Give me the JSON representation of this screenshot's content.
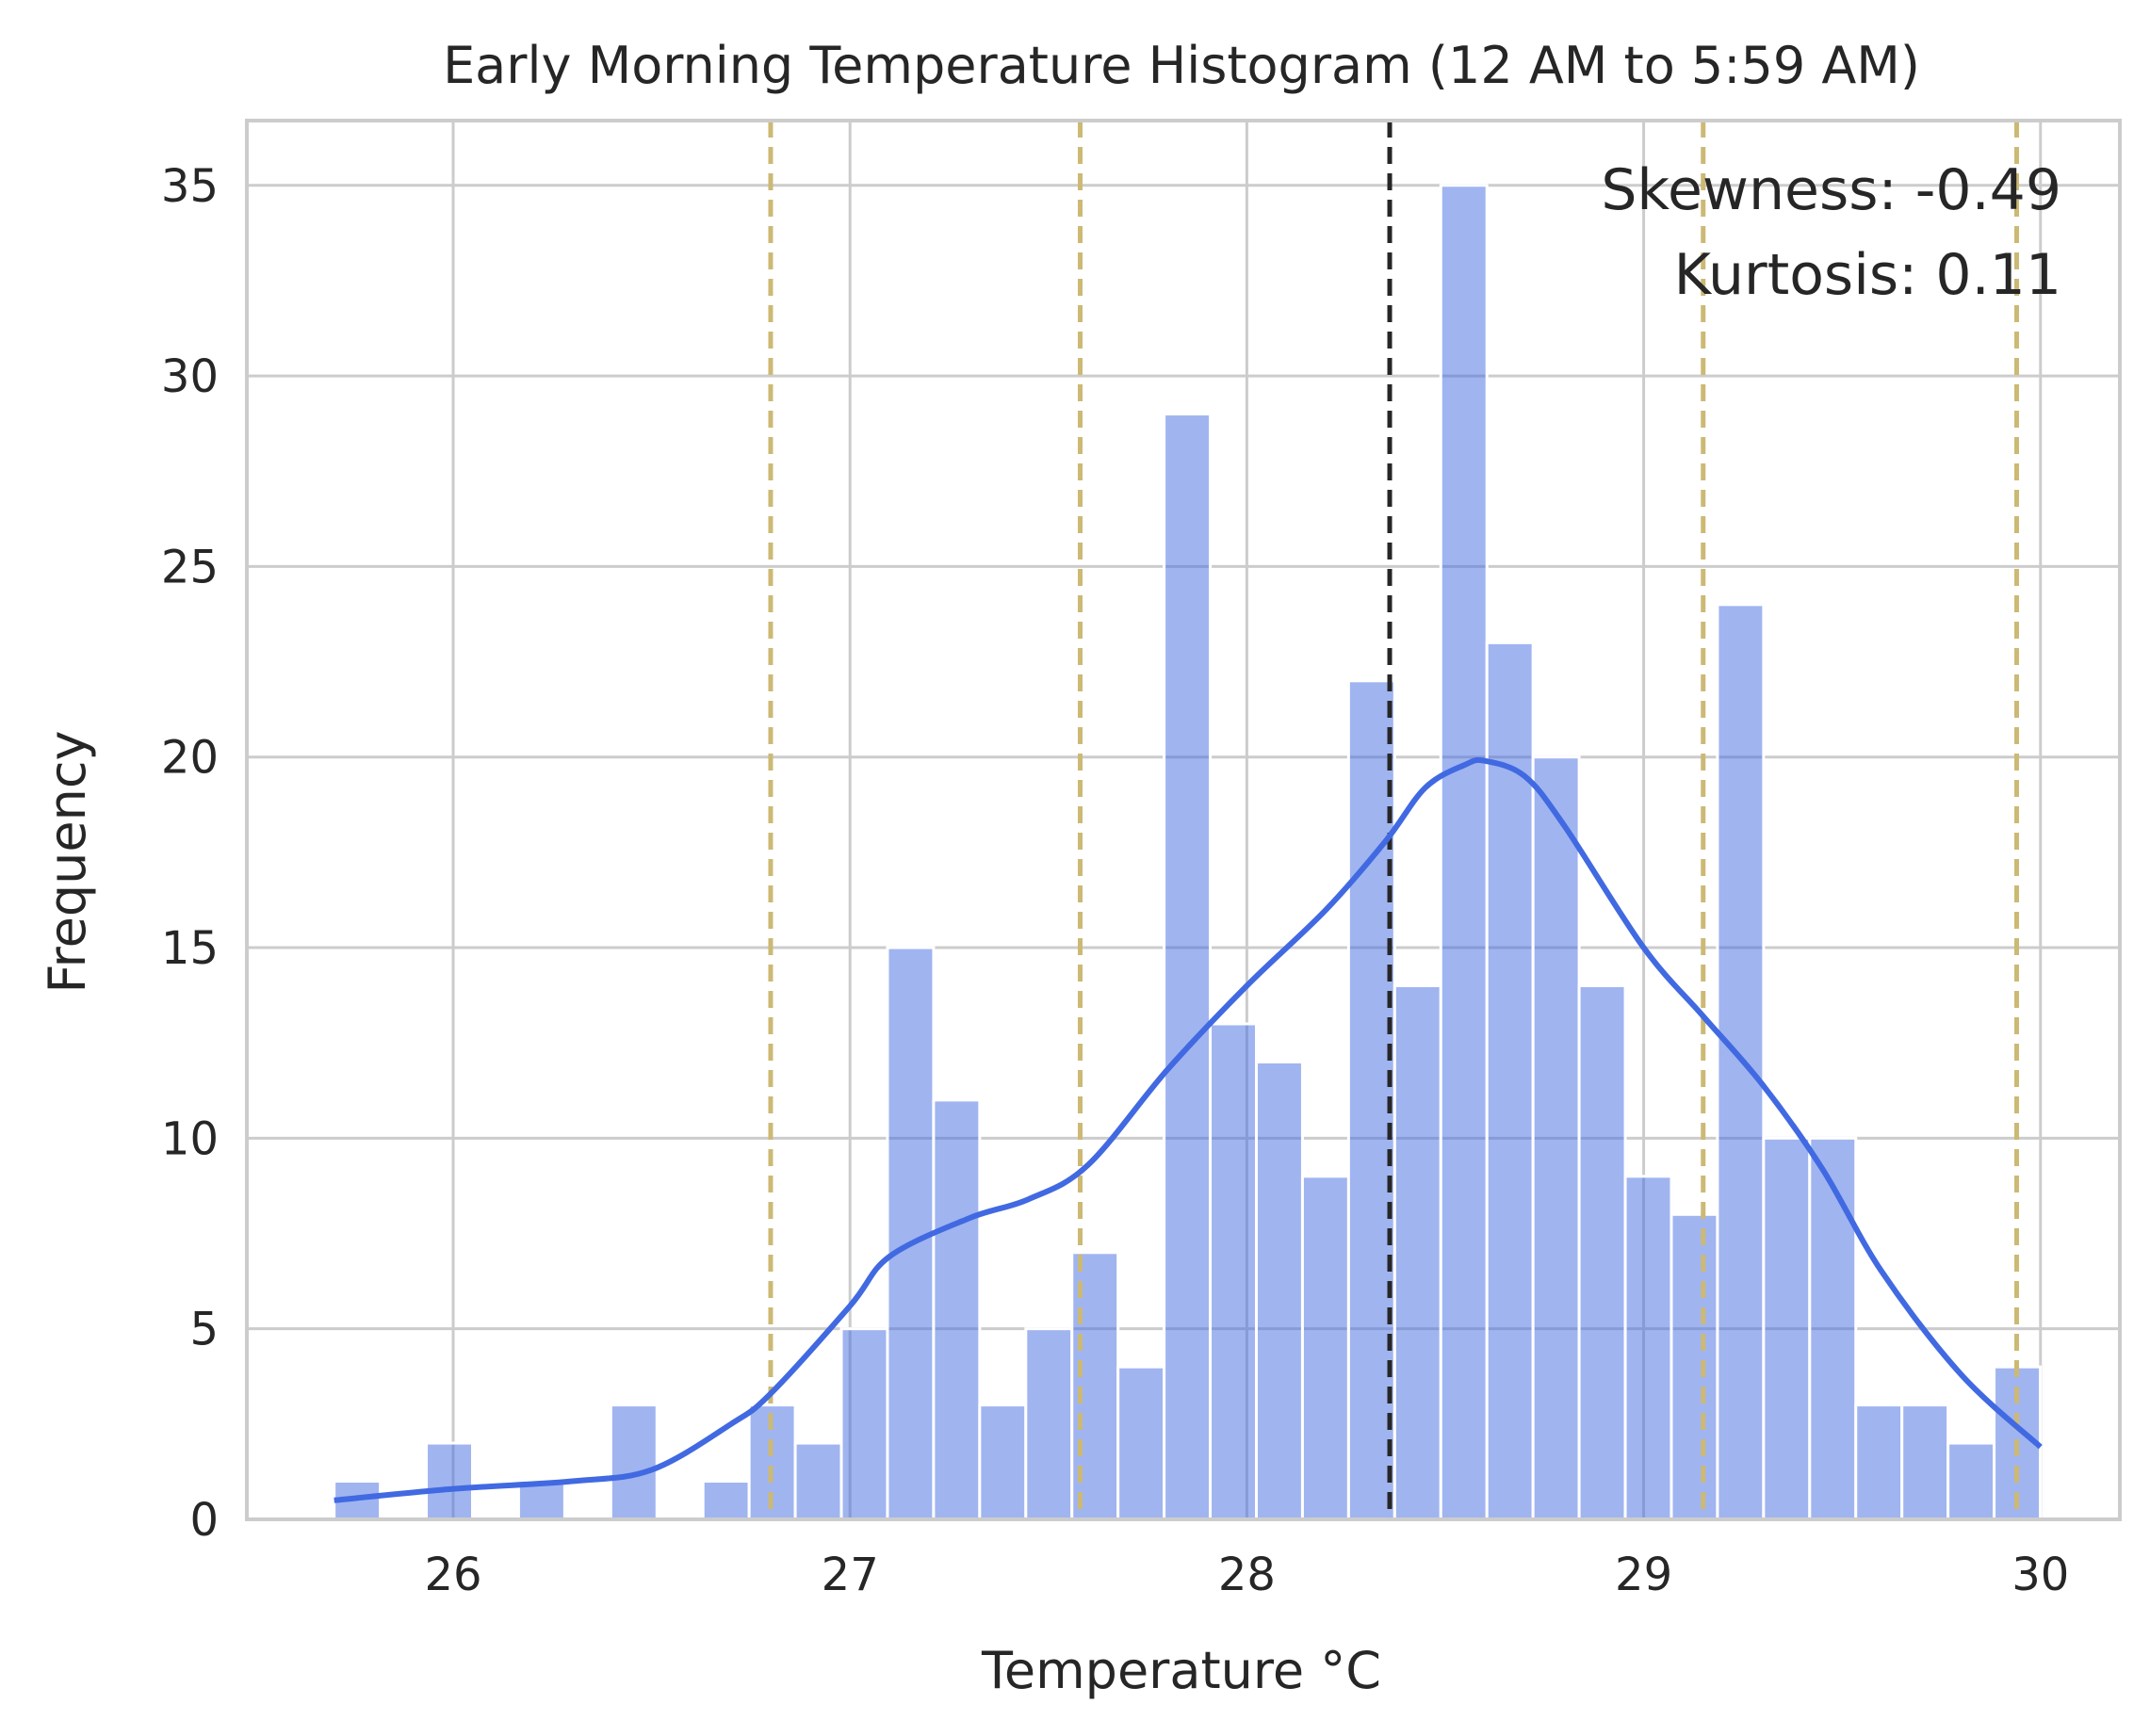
{
  "chart_data": {
    "type": "bar",
    "title": "Early Morning Temperature Histogram (12 AM to 5:59 AM)",
    "xlabel": "Temperature °C",
    "ylabel": "Frequency",
    "xlim": [
      25.48,
      30.2
    ],
    "ylim": [
      0,
      36.7
    ],
    "xticks": [
      26,
      27,
      28,
      29,
      30
    ],
    "yticks": [
      0,
      5,
      10,
      15,
      20,
      25,
      30,
      35
    ],
    "grid": true,
    "bins": {
      "start": 25.7,
      "width": 0.1162,
      "counts": [
        1,
        0,
        2,
        0,
        1,
        0,
        3,
        0,
        1,
        3,
        2,
        5,
        15,
        11,
        3,
        5,
        7,
        4,
        29,
        13,
        12,
        9,
        22,
        14,
        35,
        23,
        20,
        14,
        9,
        8,
        24,
        10,
        10,
        3,
        3,
        2,
        4
      ]
    },
    "bar_color": "#4169e1",
    "kde": {
      "color": "#4169e1",
      "x": [
        25.7,
        26.0,
        26.3,
        26.5,
        26.7,
        26.8,
        27.0,
        27.1,
        27.3,
        27.45,
        27.6,
        27.8,
        28.0,
        28.2,
        28.35,
        28.45,
        28.55,
        28.6,
        28.7,
        28.8,
        29.0,
        29.15,
        29.3,
        29.45,
        29.6,
        29.8,
        30.0
      ],
      "y": [
        0.5,
        0.8,
        1.0,
        1.3,
        2.5,
        3.3,
        5.6,
        6.9,
        7.9,
        8.4,
        9.3,
        11.8,
        14.0,
        16.0,
        17.8,
        19.2,
        19.8,
        19.9,
        19.5,
        18.2,
        15.0,
        13.2,
        11.4,
        9.2,
        6.5,
        3.8,
        1.9
      ]
    },
    "vlines": [
      {
        "x": 28.36,
        "color": "#262626"
      },
      {
        "x": 26.8,
        "color": "#ccb974"
      },
      {
        "x": 27.58,
        "color": "#ccb974"
      },
      {
        "x": 29.15,
        "color": "#ccb974"
      },
      {
        "x": 29.94,
        "color": "#ccb974"
      }
    ],
    "annotations": [
      "Skewness: -0.49",
      "Kurtosis: 0.11"
    ]
  }
}
